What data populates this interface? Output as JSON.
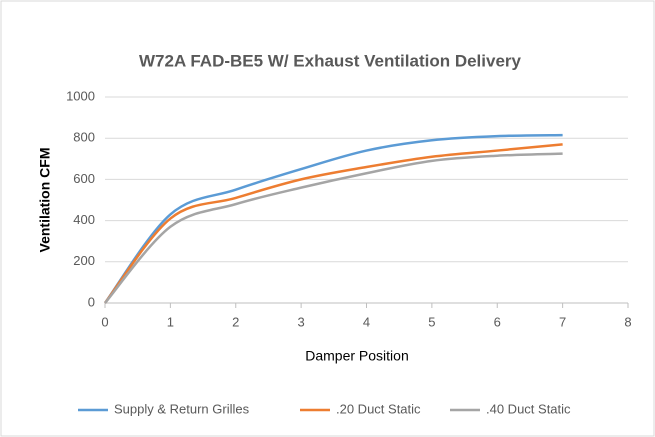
{
  "chart_data": {
    "type": "line",
    "title": "W72A   FAD-BE5 W/ Exhaust Ventilation Delivery",
    "x_label": "Damper Position",
    "y_label": "Ventilation CFM",
    "x": [
      0,
      1,
      2,
      3,
      4,
      5,
      6,
      7
    ],
    "series": [
      {
        "name": "Supply & Return Grilles",
        "color": "#5b9bd5",
        "values": [
          0,
          430,
          550,
          650,
          740,
          790,
          810,
          815
        ]
      },
      {
        "name": ".20 Duct Static",
        "color": "#ed7d31",
        "values": [
          0,
          410,
          510,
          600,
          660,
          710,
          740,
          770
        ]
      },
      {
        "name": ".40 Duct Static",
        "color": "#a5a5a5",
        "values": [
          0,
          370,
          480,
          560,
          630,
          690,
          715,
          725
        ]
      }
    ],
    "xlim": [
      0,
      8
    ],
    "xticks": [
      0,
      1,
      2,
      3,
      4,
      5,
      6,
      7,
      8
    ],
    "ylim": [
      0,
      1000
    ],
    "yticks": [
      0,
      200,
      400,
      600,
      800,
      1000
    ],
    "grid": true,
    "legend": "bottom"
  }
}
